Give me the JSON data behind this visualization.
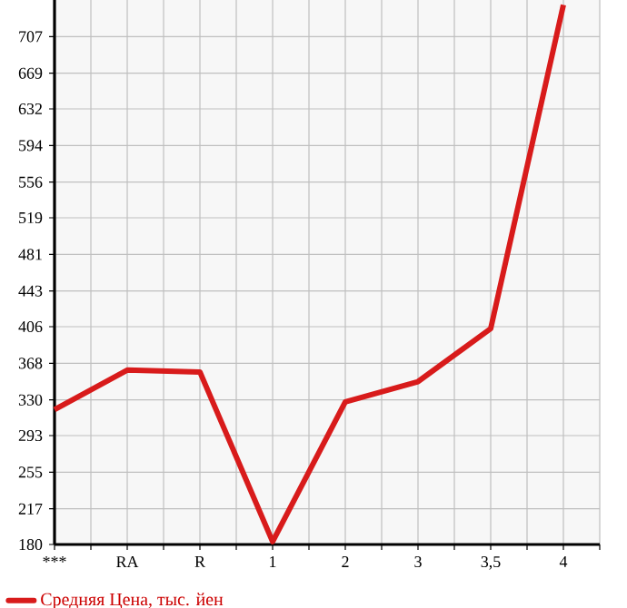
{
  "chart_data": {
    "type": "line",
    "categories": [
      "***",
      "RA",
      "R",
      "1",
      "2",
      "3",
      "3,5",
      "4"
    ],
    "series": [
      {
        "name": "Средняя Цена, тыс. йен",
        "color": "#d81b1b",
        "values": [
          320,
          361,
          359,
          183,
          328,
          349,
          404,
          740
        ]
      }
    ],
    "ylim": [
      180,
      745
    ],
    "yticks": [
      180,
      217,
      255,
      293,
      330,
      368,
      406,
      443,
      481,
      519,
      556,
      594,
      632,
      669,
      707
    ],
    "grid": true,
    "legend": "bottom",
    "marker": "none",
    "line_style": "solid"
  }
}
